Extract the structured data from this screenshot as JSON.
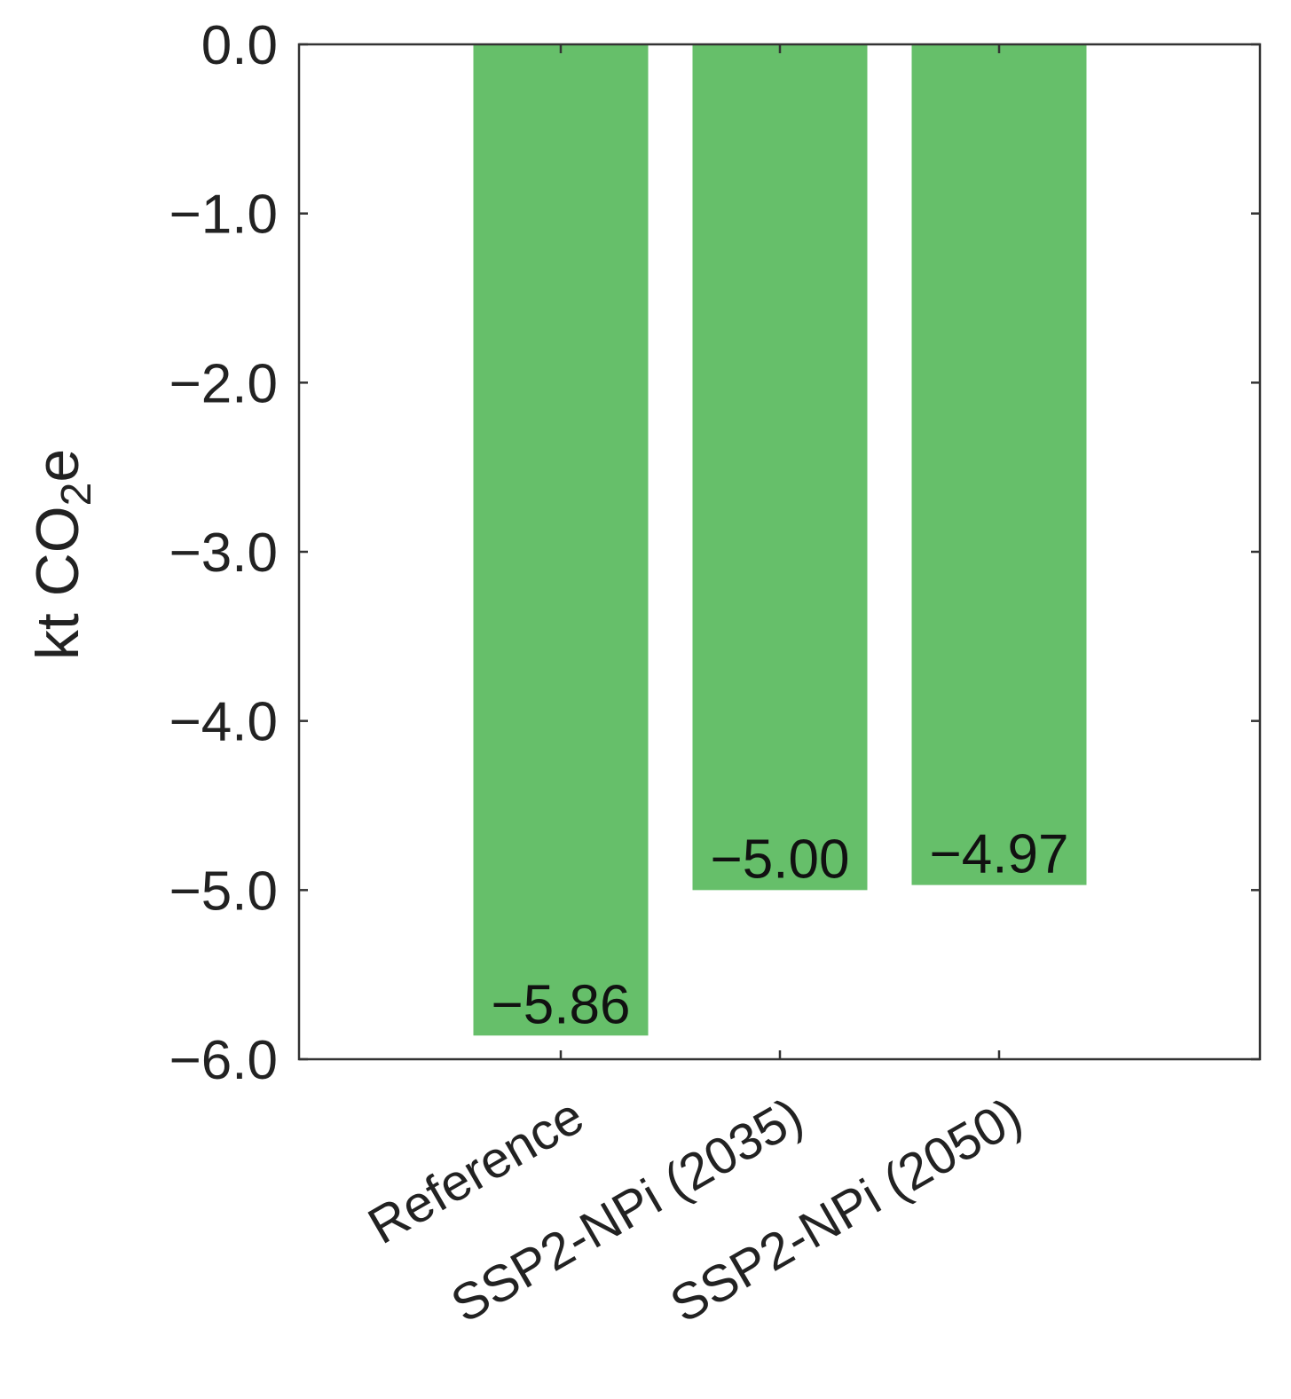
{
  "chart_data": {
    "type": "bar",
    "categories": [
      "Reference",
      "SSP2-NPi (2035)",
      "SSP2-NPi (2050)"
    ],
    "values": [
      -5.86,
      -5.0,
      -4.97
    ],
    "value_labels": [
      "−5.86",
      "−5.00",
      "−4.97"
    ],
    "ylabel_main": "kt CO",
    "ylabel_sub": "2",
    "ylabel_tail": "e",
    "ylim": [
      -6.0,
      0.0
    ],
    "yticks": [
      0.0,
      -1.0,
      -2.0,
      -3.0,
      -4.0,
      -5.0,
      -6.0
    ],
    "ytick_labels": [
      "0.0",
      "−1.0",
      "−2.0",
      "−3.0",
      "−4.0",
      "−5.0",
      "−6.0"
    ],
    "bar_color": "#66bf6a",
    "axis_color": "#333333",
    "grid": false,
    "legend": "none"
  }
}
